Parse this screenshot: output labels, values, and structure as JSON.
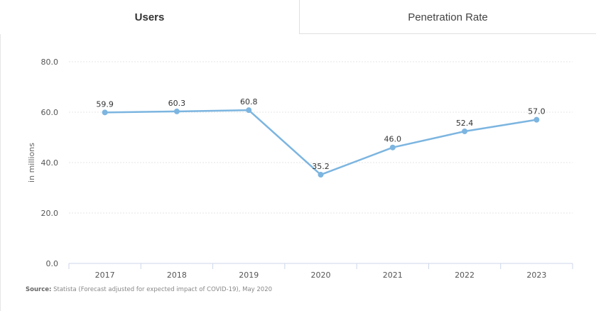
{
  "tabs": {
    "users_label": "Users",
    "penetration_label": "Penetration Rate"
  },
  "source": {
    "label": "Source:",
    "text": "Statista (Forecast adjusted for expected impact of COVID-19), May 2020"
  },
  "colors": {
    "line": "#7cb5e0",
    "grid": "#e6e6e6",
    "axis": "#ccd6eb",
    "text": "#555555"
  },
  "chart_data": {
    "type": "line",
    "categories": [
      "2017",
      "2018",
      "2019",
      "2020",
      "2021",
      "2022",
      "2023"
    ],
    "values": [
      59.9,
      60.3,
      60.8,
      35.2,
      46.0,
      52.4,
      57.0
    ],
    "value_labels": [
      "59.9",
      "60.3",
      "60.8",
      "35.2",
      "46.0",
      "52.4",
      "57.0"
    ],
    "ylabel": "in millions",
    "ylim": [
      0,
      80
    ],
    "yticks": [
      0,
      20,
      40,
      60,
      80
    ],
    "ytick_labels": [
      "0.0",
      "20.0",
      "40.0",
      "60.0",
      "80.0"
    ],
    "grid": true
  }
}
